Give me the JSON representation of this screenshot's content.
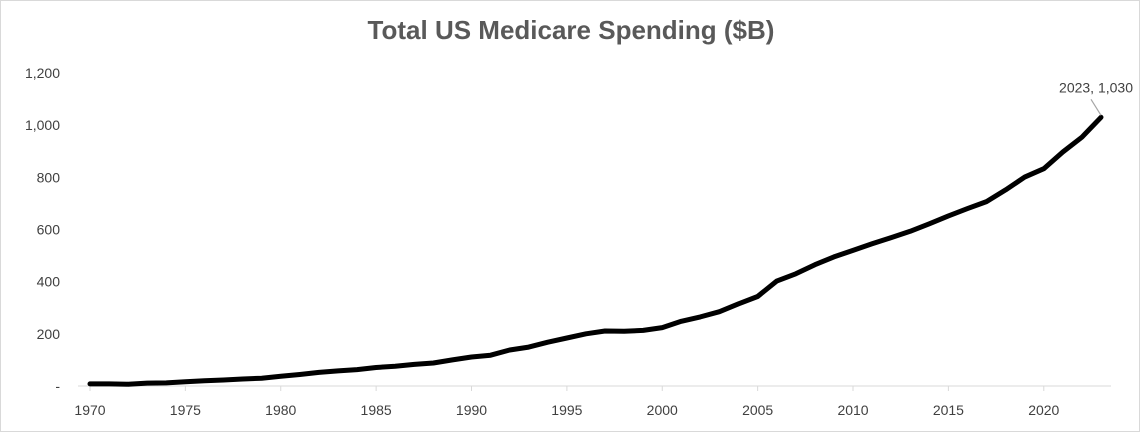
{
  "chart_data": {
    "type": "line",
    "title": "Total US Medicare Spending ($B)",
    "xlabel": "",
    "ylabel": "",
    "ylim": [
      0,
      1200
    ],
    "yticks": [
      0,
      200,
      400,
      600,
      800,
      1000,
      1200
    ],
    "ytick_labels": [
      "-",
      "200",
      "400",
      "600",
      "800",
      "1,000",
      "1,200"
    ],
    "xlim": [
      1970,
      2023
    ],
    "xticks": [
      1970,
      1975,
      1980,
      1985,
      1990,
      1995,
      2000,
      2005,
      2010,
      2015,
      2020
    ],
    "xtick_labels": [
      "1970",
      "1975",
      "1980",
      "1985",
      "1990",
      "1995",
      "2000",
      "2005",
      "2010",
      "2015",
      "2020"
    ],
    "grid": false,
    "legend": "none",
    "series": [
      {
        "name": "Total US Medicare Spending ($B)",
        "color": "#000000",
        "x": [
          1970,
          1971,
          1972,
          1973,
          1974,
          1975,
          1976,
          1977,
          1978,
          1979,
          1980,
          1981,
          1982,
          1983,
          1984,
          1985,
          1986,
          1987,
          1988,
          1989,
          1990,
          1991,
          1992,
          1993,
          1994,
          1995,
          1996,
          1997,
          1998,
          1999,
          2000,
          2001,
          2002,
          2003,
          2004,
          2005,
          2006,
          2007,
          2008,
          2009,
          2010,
          2011,
          2012,
          2013,
          2014,
          2015,
          2016,
          2017,
          2018,
          2019,
          2020,
          2021,
          2022,
          2023
        ],
        "values": [
          8,
          8,
          7,
          11,
          12,
          16,
          20,
          23,
          27,
          30,
          37,
          44,
          52,
          58,
          63,
          71,
          76,
          83,
          88,
          100,
          111,
          118,
          138,
          149,
          168,
          184,
          200,
          211,
          210,
          213,
          224,
          248,
          265,
          285,
          315,
          343,
          402,
          430,
          465,
          495,
          520,
          545,
          569,
          593,
          622,
          652,
          680,
          707,
          752,
          801,
          833,
          897,
          954,
          1030
        ]
      }
    ],
    "annotations": [
      {
        "label": "2023, 1,030",
        "x": 2023,
        "y": 1030
      }
    ]
  }
}
